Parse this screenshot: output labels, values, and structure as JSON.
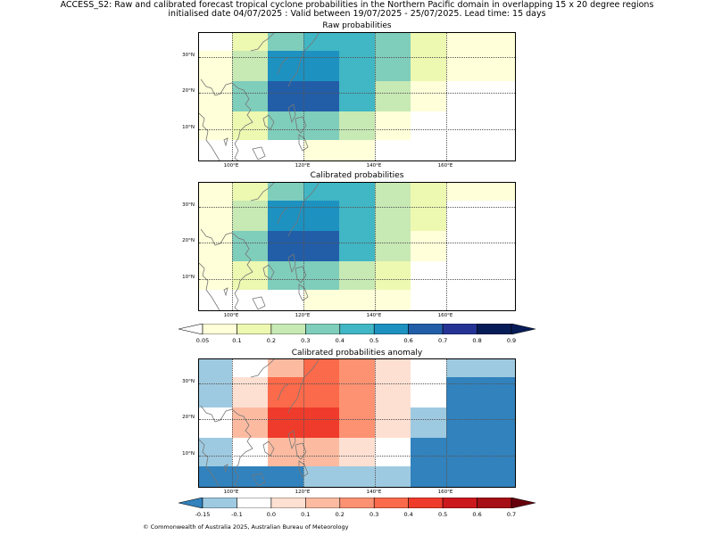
{
  "header": {
    "title_line1": "ACCESS_S2: Raw and calibrated forecast tropical cyclone probabilities in the Northern Pacific domain in overlapping 15 x 20 degree regions",
    "title_line2": "initialised date 04/07/2025 :  Valid between 19/07/2025 - 25/07/2025. Lead time: 15 days"
  },
  "panels": [
    {
      "title": "Raw probabilities"
    },
    {
      "title": "Calibrated probabilities"
    },
    {
      "title": "Calibrated probabilities anomaly"
    }
  ],
  "axes": {
    "y_labels": [
      "30°N",
      "20°N",
      "10°N"
    ],
    "x_labels": [
      "100°E",
      "120°E",
      "140°E",
      "160°E"
    ]
  },
  "colorbar_prob": {
    "ticks": [
      "0.05",
      "0.1",
      "0.2",
      "0.3",
      "0.4",
      "0.5",
      "0.6",
      "0.7",
      "0.8",
      "0.9"
    ],
    "colors": [
      "#ffffd9",
      "#edf8b1",
      "#c7e9b4",
      "#7fcdbb",
      "#41b6c4",
      "#1d91c0",
      "#225ea8",
      "#253494",
      "#081d58"
    ],
    "under_color": "#ffffff",
    "over_color": "#081d58"
  },
  "colorbar_anom": {
    "ticks": [
      "-0.15",
      "-0.1",
      "0.0",
      "0.1",
      "0.2",
      "0.3",
      "0.4",
      "0.5",
      "0.6",
      "0.7"
    ],
    "colors": [
      "#9ecae1",
      "#ffffff",
      "#fee0d2",
      "#fcbba1",
      "#fc9272",
      "#fb6a4a",
      "#ef3b2c",
      "#cb181d",
      "#a50f15"
    ],
    "under_color": "#3182bd",
    "over_color": "#67000d"
  },
  "footer": {
    "copyright": "© Commonwealth of Australia 2025, Australian Bureau of Meteorology"
  }
}
